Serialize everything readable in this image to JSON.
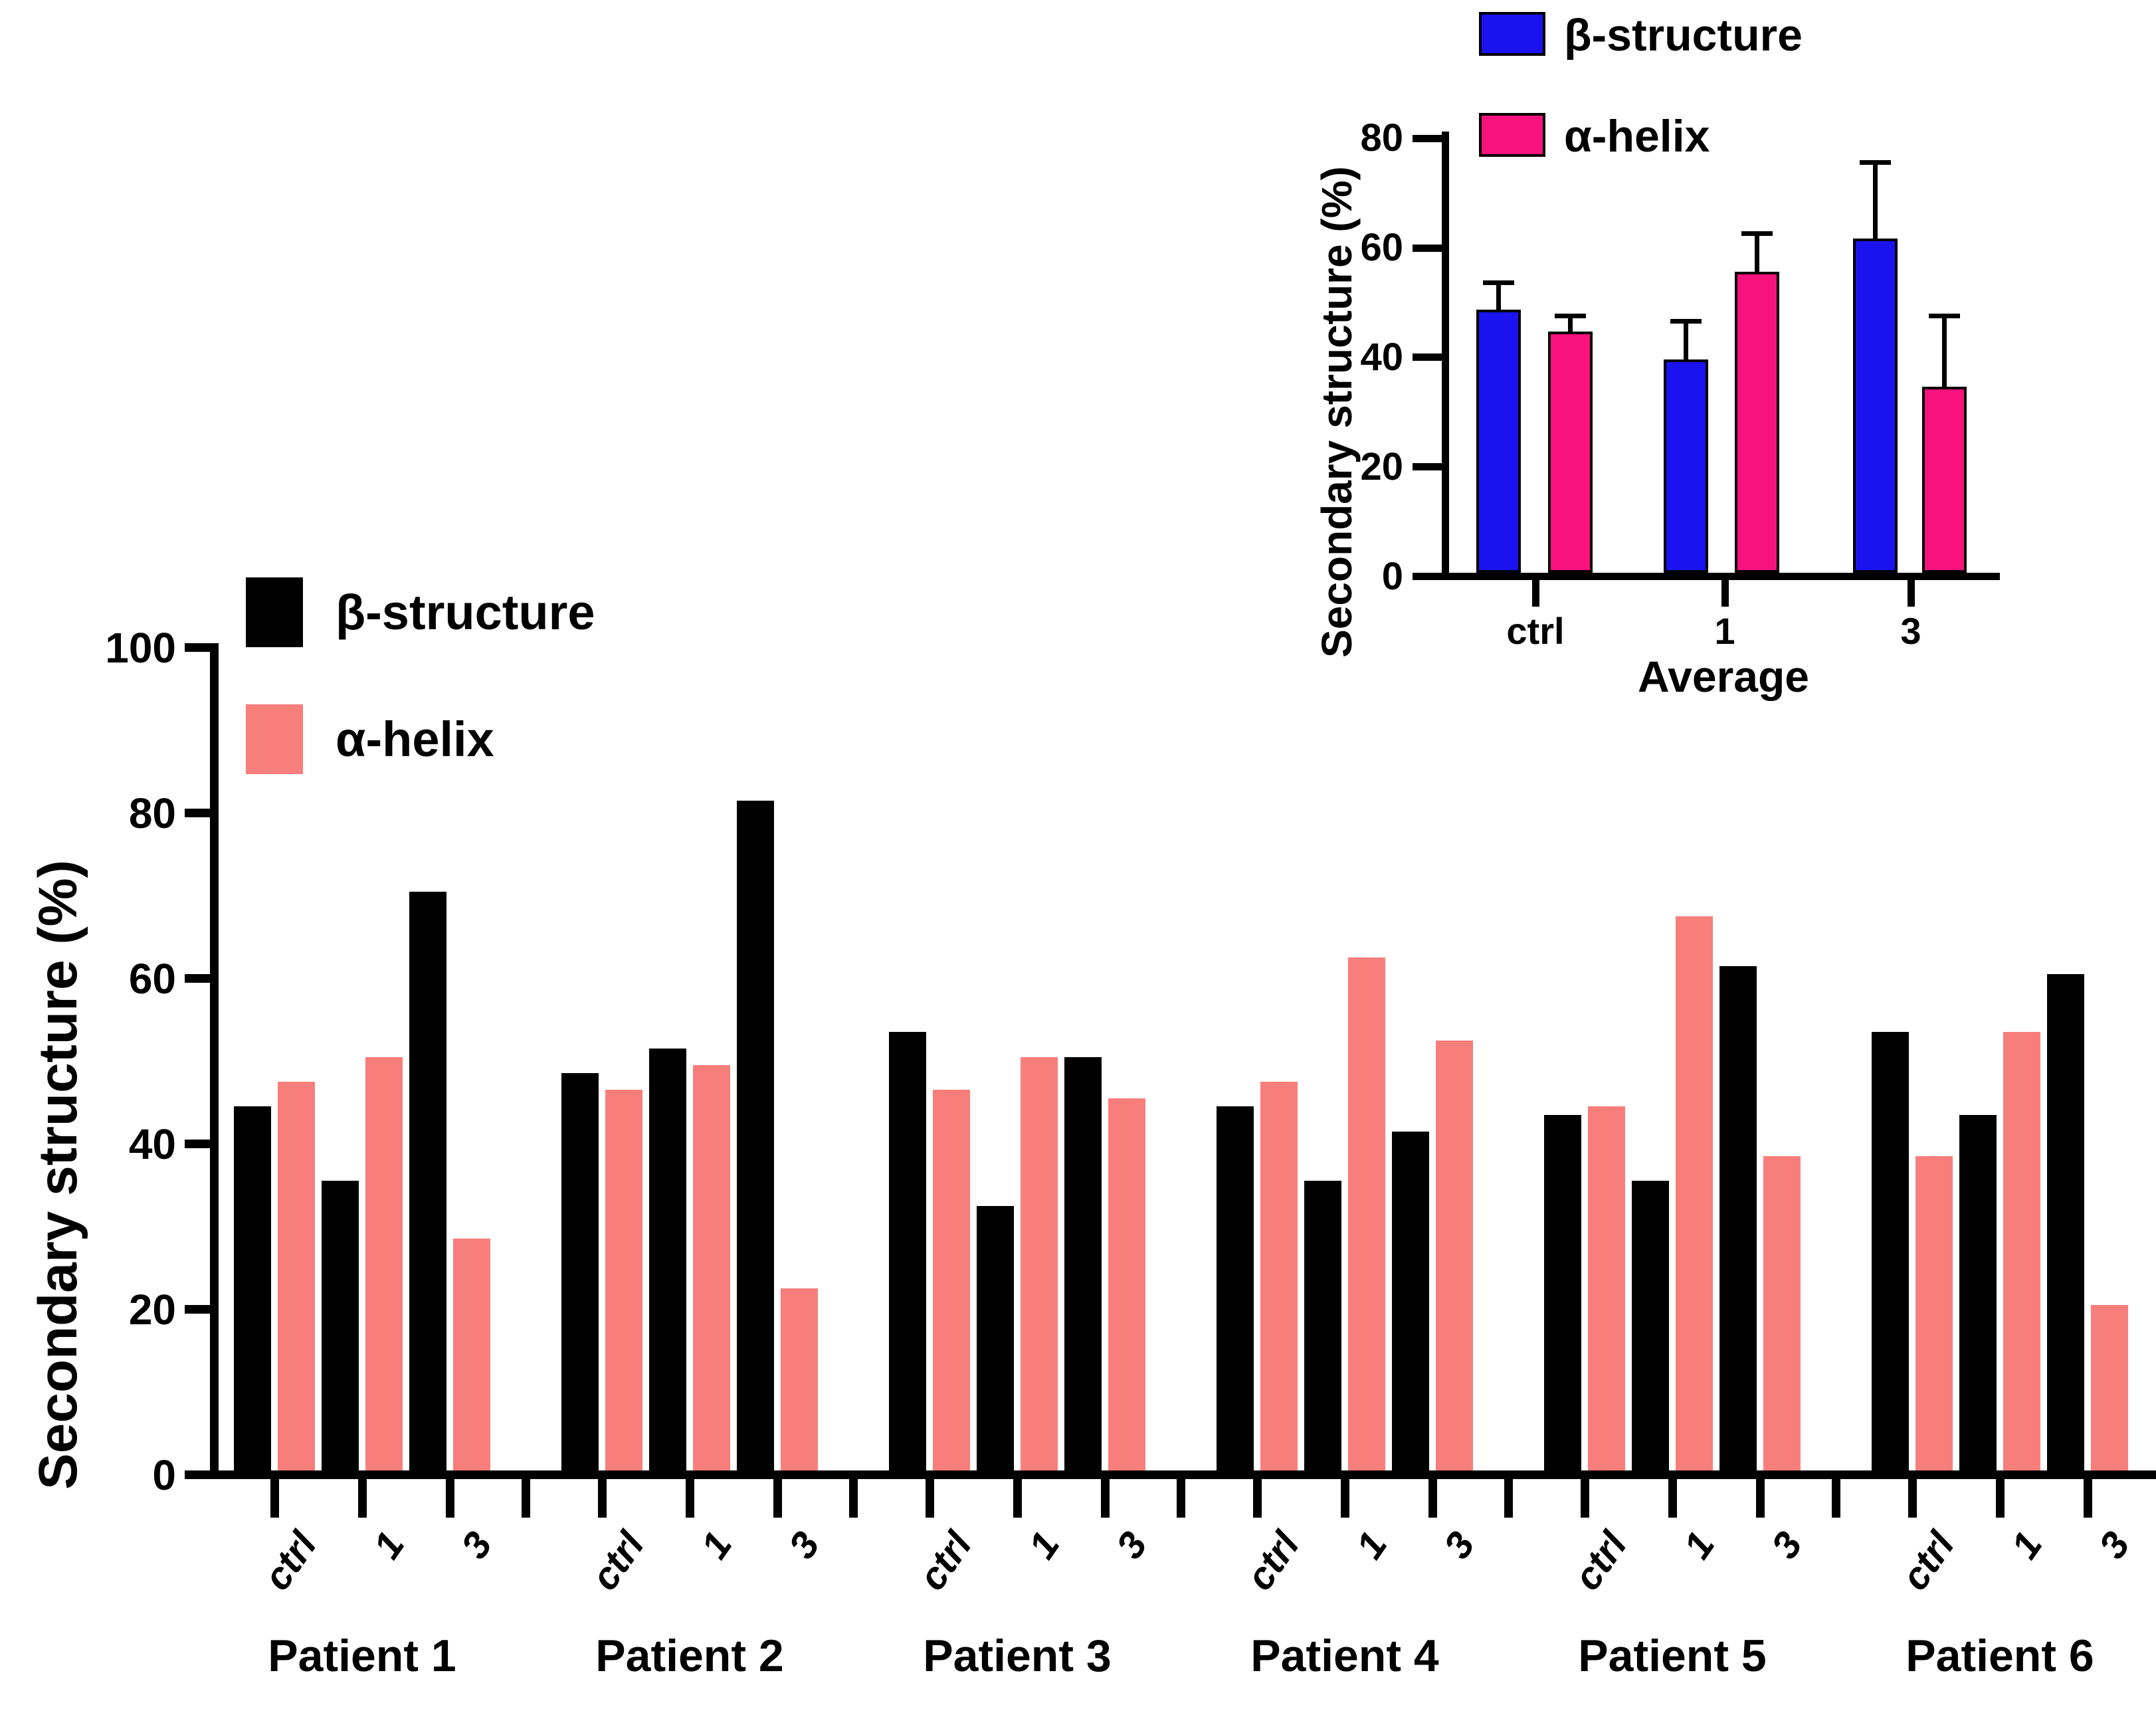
{
  "figure_kind": "grouped-bar-figure-with-inset",
  "chart_data": [
    {
      "id": "main",
      "type": "bar",
      "title": "",
      "xlabel": "",
      "ylabel": "Secondary structure (%)",
      "ylim": [
        0,
        100
      ],
      "yticks": [
        0,
        20,
        40,
        60,
        80,
        100
      ],
      "grid": false,
      "legend_position": "top-left",
      "groups": [
        "Patient 1",
        "Patient 2",
        "Patient 3",
        "Patient 4",
        "Patient 5",
        "Patient 6"
      ],
      "conditions": [
        "ctrl",
        "1",
        "3"
      ],
      "series": [
        {
          "name": "β-structure",
          "color": "#000000",
          "values": [
            [
              44,
              35,
              70
            ],
            [
              48,
              51,
              81
            ],
            [
              53,
              32,
              50
            ],
            [
              44,
              35,
              41
            ],
            [
              43,
              35,
              61
            ],
            [
              53,
              43,
              60
            ]
          ]
        },
        {
          "name": "α-helix",
          "color": "#F87E7B",
          "values": [
            [
              47,
              50,
              28
            ],
            [
              46,
              49,
              22
            ],
            [
              46,
              50,
              45
            ],
            [
              47,
              62,
              52
            ],
            [
              44,
              67,
              38
            ],
            [
              38,
              53,
              20
            ]
          ]
        }
      ]
    },
    {
      "id": "inset",
      "type": "bar",
      "title": "",
      "xlabel": "Average",
      "ylabel": "Secondary structure (%)",
      "ylim": [
        0,
        80
      ],
      "yticks": [
        0,
        20,
        40,
        60,
        80
      ],
      "grid": false,
      "legend_position": "top-left",
      "categories": [
        "ctrl",
        "1",
        "3"
      ],
      "series": [
        {
          "name": "β-structure",
          "color": "#1B13EF",
          "values": [
            48,
            39,
            61
          ],
          "errors_plus": [
            5,
            7,
            14
          ]
        },
        {
          "name": "α-helix",
          "color": "#F8127E",
          "values": [
            44,
            55,
            34
          ],
          "errors_plus": [
            3,
            7,
            13
          ]
        }
      ]
    }
  ]
}
